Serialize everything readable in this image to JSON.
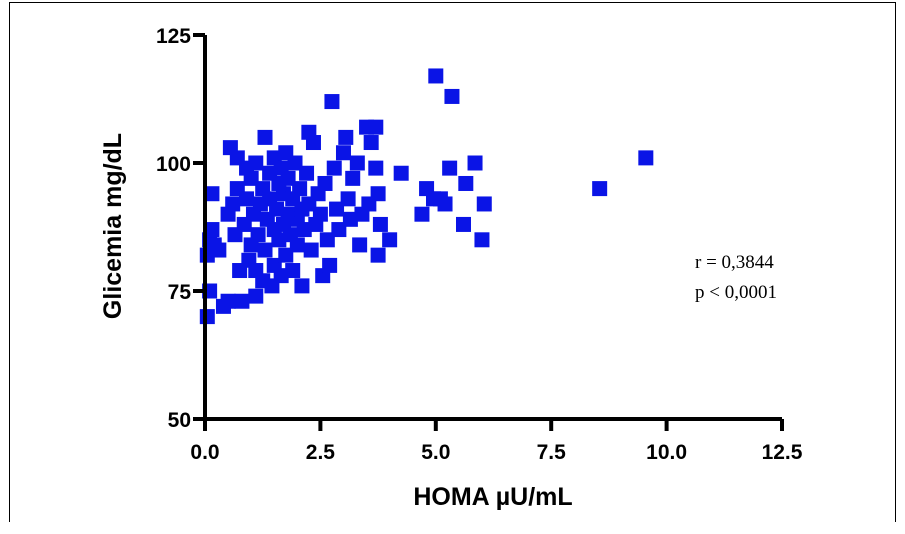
{
  "chart_data": {
    "type": "scatter",
    "xlabel": "HOMA µU/mL",
    "ylabel": "Glicemia mg/dL",
    "xlim": [
      0,
      12.5
    ],
    "ylim": [
      50,
      125
    ],
    "x_ticks": [
      "0.0",
      "2.5",
      "5.0",
      "7.5",
      "10.0",
      "12.5"
    ],
    "y_ticks": [
      "50",
      "75",
      "100",
      "125"
    ],
    "marker_color": "#0a14e6",
    "marker": "square",
    "grid": false,
    "annotations": [
      "r = 0,3844",
      "p < 0,0001"
    ],
    "points": [
      [
        0.05,
        70
      ],
      [
        0.1,
        75
      ],
      [
        0.05,
        82
      ],
      [
        0.1,
        85
      ],
      [
        0.15,
        87
      ],
      [
        0.15,
        94
      ],
      [
        0.2,
        84
      ],
      [
        0.3,
        83
      ],
      [
        0.4,
        72
      ],
      [
        0.5,
        73
      ],
      [
        0.5,
        90
      ],
      [
        0.6,
        92
      ],
      [
        0.55,
        103
      ],
      [
        0.7,
        101
      ],
      [
        0.7,
        95
      ],
      [
        0.65,
        86
      ],
      [
        0.75,
        79
      ],
      [
        0.8,
        73
      ],
      [
        0.85,
        88
      ],
      [
        0.9,
        99
      ],
      [
        0.9,
        93
      ],
      [
        0.95,
        81
      ],
      [
        1.0,
        84
      ],
      [
        1.0,
        97
      ],
      [
        1.05,
        90
      ],
      [
        1.1,
        74
      ],
      [
        1.1,
        79
      ],
      [
        1.1,
        100
      ],
      [
        1.15,
        86
      ],
      [
        1.2,
        92
      ],
      [
        1.25,
        95
      ],
      [
        1.25,
        77
      ],
      [
        1.3,
        105
      ],
      [
        1.3,
        83
      ],
      [
        1.35,
        89
      ],
      [
        1.4,
        98
      ],
      [
        1.4,
        93
      ],
      [
        1.45,
        76
      ],
      [
        1.5,
        87
      ],
      [
        1.5,
        80
      ],
      [
        1.5,
        101
      ],
      [
        1.55,
        91
      ],
      [
        1.6,
        96
      ],
      [
        1.6,
        85
      ],
      [
        1.65,
        78
      ],
      [
        1.65,
        99
      ],
      [
        1.7,
        94
      ],
      [
        1.7,
        88
      ],
      [
        1.75,
        82
      ],
      [
        1.75,
        102
      ],
      [
        1.8,
        90
      ],
      [
        1.8,
        97
      ],
      [
        1.85,
        86
      ],
      [
        1.9,
        79
      ],
      [
        1.9,
        93
      ],
      [
        1.95,
        100
      ],
      [
        2.0,
        84
      ],
      [
        2.0,
        89
      ],
      [
        2.05,
        95
      ],
      [
        2.1,
        91
      ],
      [
        2.1,
        76
      ],
      [
        2.15,
        87
      ],
      [
        2.2,
        98
      ],
      [
        2.25,
        106
      ],
      [
        2.25,
        92
      ],
      [
        2.3,
        83
      ],
      [
        2.35,
        104
      ],
      [
        2.4,
        88
      ],
      [
        2.45,
        94
      ],
      [
        2.5,
        90
      ],
      [
        2.55,
        78
      ],
      [
        2.6,
        96
      ],
      [
        2.65,
        85
      ],
      [
        2.7,
        80
      ],
      [
        2.75,
        112
      ],
      [
        2.8,
        99
      ],
      [
        2.85,
        91
      ],
      [
        2.9,
        87
      ],
      [
        3.0,
        102
      ],
      [
        3.05,
        105
      ],
      [
        3.1,
        93
      ],
      [
        3.15,
        89
      ],
      [
        3.2,
        97
      ],
      [
        3.3,
        100
      ],
      [
        3.35,
        84
      ],
      [
        3.4,
        90
      ],
      [
        3.5,
        107
      ],
      [
        3.55,
        92
      ],
      [
        3.6,
        104
      ],
      [
        3.7,
        107
      ],
      [
        3.7,
        99
      ],
      [
        3.75,
        94
      ],
      [
        3.75,
        82
      ],
      [
        3.8,
        88
      ],
      [
        4.0,
        85
      ],
      [
        4.25,
        98
      ],
      [
        4.7,
        90
      ],
      [
        4.8,
        95
      ],
      [
        4.95,
        93
      ],
      [
        5.0,
        117
      ],
      [
        5.1,
        93
      ],
      [
        5.2,
        92
      ],
      [
        5.3,
        99
      ],
      [
        5.35,
        113
      ],
      [
        5.6,
        88
      ],
      [
        5.65,
        96
      ],
      [
        5.85,
        100
      ],
      [
        6.0,
        85
      ],
      [
        6.05,
        92
      ],
      [
        8.55,
        95
      ],
      [
        9.55,
        101
      ]
    ]
  }
}
